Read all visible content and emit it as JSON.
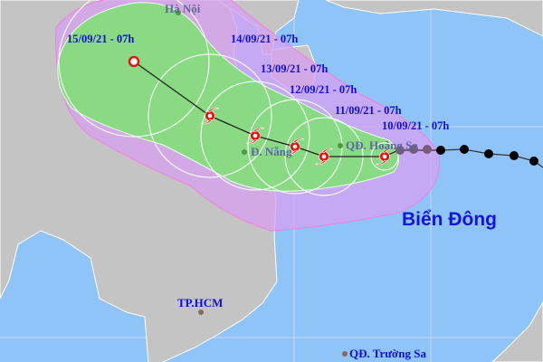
{
  "map": {
    "colors": {
      "sea": "#8fc4f9",
      "land": "#c4c4c4",
      "warning_zone": "#d8a8e8",
      "storm_zone": "#86dc7e",
      "storm_icon": "#ee1111",
      "past_storm": "#000000"
    },
    "forecast_points": [
      {
        "label": "15/09/21 - 07h"
      },
      {
        "label": "14/09/21 - 07h"
      },
      {
        "label": "13/09/21 - 07h"
      },
      {
        "label": "12/09/21 - 07h"
      },
      {
        "label": "11/09/21 - 07h"
      },
      {
        "label": "10/09/21 - 07h"
      }
    ],
    "places": {
      "hanoi": "Hà Nội",
      "danang": "Đ. Nẵng",
      "hoangsa": "QĐ. Hoàng Sa",
      "hcm": "TP.HCM",
      "truongsa": "QĐ. Trường Sa",
      "sea": "Biển Đông"
    }
  }
}
